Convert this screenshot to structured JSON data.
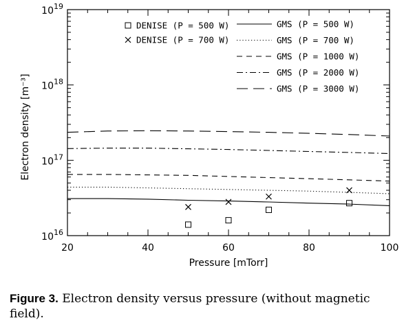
{
  "chart_data": {
    "type": "line",
    "xlabel": "Pressure [mTorr]",
    "ylabel": "Electron density [m⁻³]",
    "xlim": [
      20,
      100
    ],
    "ylim": [
      1e+16,
      1e+19
    ],
    "yscale": "log",
    "grid": false,
    "legend_position": "top",
    "x_ticks": [
      "20",
      "40",
      "60",
      "80",
      "100"
    ],
    "y_ticks": [
      {
        "base": "10",
        "exp": "16",
        "value": 1e+16
      },
      {
        "base": "10",
        "exp": "17",
        "value": 1e+17
      },
      {
        "base": "10",
        "exp": "18",
        "value": 1e+18
      },
      {
        "base": "10",
        "exp": "19",
        "value": 1e+19
      }
    ],
    "series": [
      {
        "name": "DENISE (P = 500 W)",
        "marker": "square",
        "style": "marker",
        "x": [
          50,
          60,
          70,
          90
        ],
        "y": [
          1.4e+16,
          1.6e+16,
          2.2e+16,
          2.7e+16
        ]
      },
      {
        "name": "DENISE (P = 700 W)",
        "marker": "x",
        "style": "marker",
        "x": [
          50,
          60,
          70,
          90
        ],
        "y": [
          2.4e+16,
          2.8e+16,
          3.3e+16,
          4e+16
        ]
      },
      {
        "name": "GMS (P = 500 W)",
        "style": "solid",
        "x": [
          20,
          30,
          40,
          50,
          60,
          70,
          80,
          90,
          100
        ],
        "y": [
          3.1e+16,
          3.1e+16,
          3.05e+16,
          2.95e+16,
          2.88e+16,
          2.8e+16,
          2.7e+16,
          2.62e+16,
          2.5e+16
        ]
      },
      {
        "name": "GMS (P = 700 W)",
        "style": "dotted",
        "x": [
          20,
          30,
          40,
          50,
          60,
          70,
          80,
          90,
          100
        ],
        "y": [
          4.4e+16,
          4.4e+16,
          4.3e+16,
          4.2e+16,
          4.1e+16,
          4e+16,
          3.9e+16,
          3.75e+16,
          3.6e+16
        ]
      },
      {
        "name": "GMS (P = 1000 W)",
        "style": "dashed",
        "x": [
          20,
          30,
          40,
          50,
          60,
          70,
          80,
          90,
          100
        ],
        "y": [
          6.5e+16,
          6.5e+16,
          6.4e+16,
          6.3e+16,
          6.1e+16,
          5.9e+16,
          5.7e+16,
          5.5e+16,
          5.3e+16
        ]
      },
      {
        "name": "GMS (P = 2000 W)",
        "style": "dashdot",
        "x": [
          20,
          30,
          40,
          50,
          60,
          70,
          80,
          90,
          100
        ],
        "y": [
          1.43e+17,
          1.45e+17,
          1.45e+17,
          1.42e+17,
          1.39e+17,
          1.35e+17,
          1.31e+17,
          1.27e+17,
          1.23e+17
        ]
      },
      {
        "name": "GMS (P = 3000 W)",
        "style": "longdash",
        "x": [
          20,
          30,
          40,
          50,
          60,
          70,
          80,
          90,
          100
        ],
        "y": [
          2.35e+17,
          2.45e+17,
          2.47e+17,
          2.45e+17,
          2.4e+17,
          2.35e+17,
          2.28e+17,
          2.2e+17,
          2.1e+17
        ]
      }
    ]
  },
  "caption": {
    "label": "Figure 3.",
    "text": " Electron density versus pressure (without magnetic field)."
  }
}
